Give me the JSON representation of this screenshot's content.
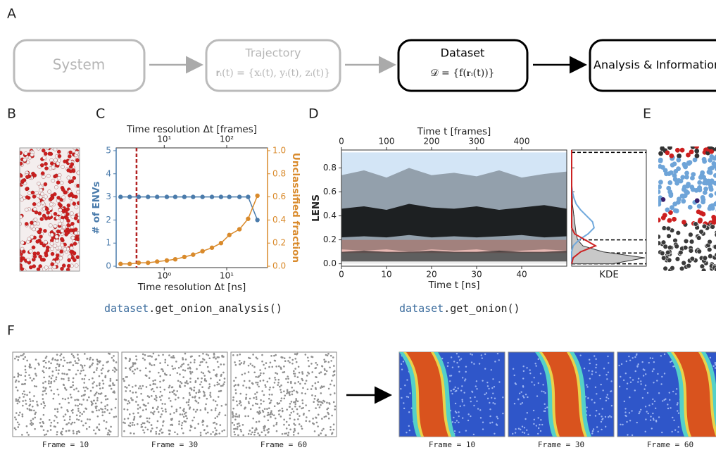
{
  "panel_labels": [
    "A",
    "B",
    "C",
    "D",
    "E",
    "F"
  ],
  "flow": {
    "nodes": [
      {
        "label": "System"
      },
      {
        "label": "Trajectory",
        "formula": "𝐫ᵢ(t) = {xᵢ(t), yᵢ(t), zᵢ(t)}"
      },
      {
        "label": "Dataset",
        "formula": "𝒟 = {f(𝐫ᵢ(t))}"
      },
      {
        "label": "Analysis & Information"
      }
    ]
  },
  "code": [
    {
      "object": "dataset",
      "method": ".get_onion_analysis()"
    },
    {
      "object": "dataset",
      "method": ".get_onion()"
    }
  ],
  "chart_data": [
    {
      "type": "line",
      "x": [
        0.2,
        0.28,
        0.39,
        0.55,
        0.77,
        1.1,
        1.5,
        2.1,
        2.9,
        4.1,
        5.8,
        8.1,
        11,
        16,
        22,
        31
      ],
      "xscale": "log",
      "xlim": [
        0.17,
        45
      ],
      "xlabel": "Time resolution Δt [ns]",
      "xticks": [
        {
          "value": 1,
          "label": "10⁰"
        },
        {
          "value": 10,
          "label": "10¹"
        }
      ],
      "x2label": "Time resolution Δt [frames]",
      "x2lim": [
        1.7,
        450
      ],
      "x2ticks": [
        {
          "value": 10,
          "label": "10¹"
        },
        {
          "value": 100,
          "label": "10²"
        }
      ],
      "ylabel": "# of ENVs",
      "ylim": [
        -0.06,
        5.12
      ],
      "yticks": [
        0,
        1,
        2,
        3,
        4,
        5
      ],
      "y2label": "Unclassified fraction",
      "y2lim": [
        -0.012,
        1.024
      ],
      "y2ticks": [
        {
          "value": 0,
          "label": "0.0"
        },
        {
          "value": 0.2,
          "label": "0.2"
        },
        {
          "value": 0.4,
          "label": "0.4"
        },
        {
          "value": 0.6,
          "label": "0.6"
        },
        {
          "value": 0.8,
          "label": "0.8"
        },
        {
          "value": 1,
          "label": "1.0"
        }
      ],
      "series": [
        {
          "color": "#4a7bab",
          "values": [
            3,
            3,
            3,
            3,
            3,
            3,
            3,
            3,
            3,
            3,
            3,
            3,
            3,
            3,
            3,
            2
          ]
        },
        {
          "color": "#d98a2b",
          "axis": "y2",
          "values": [
            0.02,
            0.02,
            0.03,
            0.03,
            0.04,
            0.05,
            0.06,
            0.08,
            0.1,
            0.13,
            0.16,
            0.2,
            0.27,
            0.32,
            0.41,
            0.61
          ]
        }
      ],
      "vline": {
        "x": 0.36,
        "color": "#b22222"
      }
    },
    {
      "type": "band",
      "x": [
        0,
        5,
        10,
        15,
        20,
        25,
        30,
        35,
        40,
        45,
        50
      ],
      "xlim": [
        0,
        50
      ],
      "xlabel": "Time t [ns]",
      "xticks": [
        0,
        10,
        20,
        30,
        40
      ],
      "x2label": "Time t [frames]",
      "x2lim": [
        0,
        500
      ],
      "x2ticks": [
        0,
        100,
        200,
        300,
        400
      ],
      "ylabel": "LENS",
      "ylim": [
        -0.02,
        0.95
      ],
      "yticks": [
        {
          "value": 0,
          "label": "0.0"
        },
        {
          "value": 0.2,
          "label": "0.2"
        },
        {
          "value": 0.4,
          "label": "0.4"
        },
        {
          "value": 0.6,
          "label": "0.6"
        },
        {
          "value": 0.8,
          "label": "0.8"
        }
      ],
      "thresholds": [
        0,
        0.09,
        0.2,
        0.93
      ],
      "region_colors": [
        "#ededed",
        "#e9b9b4",
        "#d3e5f6"
      ],
      "bands": [
        {
          "color": "#000",
          "opacity": 0.3,
          "low": [
            0.12,
            0.11,
            0.12,
            0.1,
            0.12,
            0.11,
            0.12,
            0.1,
            0.11,
            0.12,
            0.11
          ],
          "high": [
            0.74,
            0.78,
            0.72,
            0.8,
            0.74,
            0.76,
            0.73,
            0.78,
            0.72,
            0.75,
            0.77
          ]
        },
        {
          "color": "#000",
          "opacity": 0.8,
          "low": [
            0.22,
            0.23,
            0.22,
            0.24,
            0.22,
            0.23,
            0.22,
            0.23,
            0.24,
            0.22,
            0.23
          ],
          "high": [
            0.46,
            0.48,
            0.45,
            0.5,
            0.47,
            0.46,
            0.48,
            0.45,
            0.47,
            0.49,
            0.46
          ]
        },
        {
          "color": "#222",
          "opacity": 0.7,
          "low": [
            0.02,
            0.02,
            0.02,
            0.02,
            0.02,
            0.02,
            0.02,
            0.02,
            0.02,
            0.02,
            0.02
          ],
          "high": [
            0.1,
            0.11,
            0.1,
            0.1,
            0.11,
            0.1,
            0.1,
            0.11,
            0.1,
            0.1,
            0.11
          ]
        }
      ],
      "kde": {
        "label": "KDE",
        "xlim": [
          0,
          1
        ],
        "y": [
          0,
          0.05,
          0.1,
          0.15,
          0.2,
          0.25,
          0.3,
          0.35,
          0.4,
          0.45,
          0.5,
          0.55,
          0.6,
          0.65,
          0.7,
          0.75,
          0.8,
          0.85,
          0.9,
          0.95
        ],
        "series": [
          {
            "color": "#8c8c8c",
            "values": [
              0.55,
              0.98,
              0.42,
              0.15,
              0.08,
              0.06,
              0.05,
              0.04,
              0.03,
              0.02,
              0.01,
              0.01,
              0,
              0,
              0,
              0,
              0,
              0,
              0,
              0
            ]
          },
          {
            "color": "#6fa8dc",
            "values": [
              0,
              0,
              0,
              0.02,
              0.1,
              0.22,
              0.3,
              0.28,
              0.2,
              0.12,
              0.06,
              0.03,
              0.01,
              0,
              0,
              0,
              0,
              0,
              0,
              0
            ]
          },
          {
            "color": "#cc2222",
            "values": [
              0,
              0.02,
              0.12,
              0.32,
              0.18,
              0.04,
              0,
              0,
              0,
              0,
              0,
              0,
              0,
              0,
              0,
              0,
              0,
              0,
              0,
              0
            ]
          }
        ]
      }
    }
  ],
  "frames": {
    "raw": [
      "Frame = 10",
      "Frame = 30",
      "Frame = 60"
    ],
    "onion": [
      "Frame = 10",
      "Frame = 30",
      "Frame = 60"
    ]
  }
}
